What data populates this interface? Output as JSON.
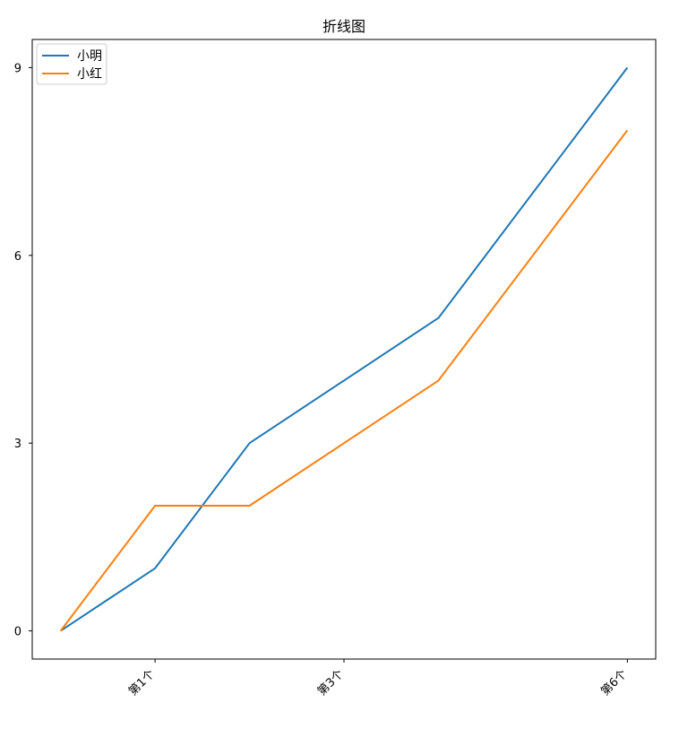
{
  "chart_data": {
    "type": "line",
    "title": "折线图",
    "xlabel": "",
    "ylabel": "",
    "x": [
      0,
      1,
      2,
      3,
      4,
      5,
      6
    ],
    "xticks": [
      {
        "value": 1,
        "label": "第1个"
      },
      {
        "value": 3,
        "label": "第3个"
      },
      {
        "value": 6,
        "label": "第6个"
      }
    ],
    "yticks": [
      0,
      3,
      6,
      9
    ],
    "ylim": [
      -0.45,
      9.45
    ],
    "xlim": [
      -0.3,
      6.3
    ],
    "series": [
      {
        "name": "小明",
        "color": "#1f77b4",
        "values": [
          0,
          1,
          3,
          4,
          5,
          7,
          9
        ]
      },
      {
        "name": "小红",
        "color": "#ff7f0e",
        "values": [
          0,
          2,
          2,
          3,
          4,
          6,
          8
        ]
      }
    ],
    "legend": "top-left",
    "grid": false
  }
}
